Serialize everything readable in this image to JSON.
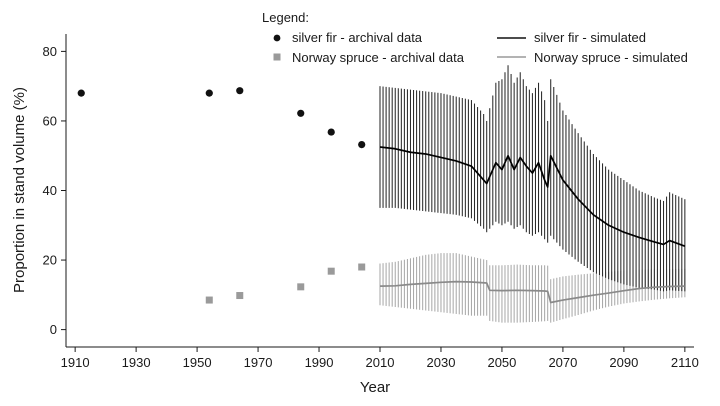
{
  "chart_data": {
    "type": "scatter",
    "xlabel": "Year",
    "ylabel": "Proportion in stand volume (%)",
    "xlim": [
      1907,
      2113
    ],
    "ylim": [
      -5,
      85
    ],
    "xticks": [
      1910,
      1930,
      1950,
      1970,
      1990,
      2010,
      2030,
      2050,
      2070,
      2090,
      2110
    ],
    "yticks": [
      0,
      20,
      40,
      60,
      80
    ],
    "legend": {
      "title": "Legend:",
      "items": [
        {
          "label": "silver fir - archival data",
          "marker": "circle",
          "color": "#111111"
        },
        {
          "label": "Norway spruce - archival data",
          "marker": "square",
          "color": "#9a9a9a"
        },
        {
          "label": "silver fir - simulated",
          "marker": "line",
          "color": "#111111"
        },
        {
          "label": "Norway spruce - simulated",
          "marker": "line",
          "color": "#9a9a9a"
        }
      ]
    },
    "archival": {
      "fir": {
        "x": [
          1912,
          1954,
          1964,
          1984,
          1994,
          2004
        ],
        "y": [
          68,
          68,
          68.7,
          62.2,
          56.8,
          53.2
        ]
      },
      "spruce": {
        "x": [
          1954,
          1964,
          1984,
          1994,
          2004
        ],
        "y": [
          8.5,
          9.8,
          12.3,
          16.8,
          18
        ]
      }
    },
    "simulated": {
      "fir": {
        "x": [
          2010,
          2015,
          2020,
          2025,
          2030,
          2035,
          2040,
          2044,
          2045,
          2048,
          2050,
          2052,
          2054,
          2056,
          2058,
          2060,
          2062,
          2064,
          2065,
          2066,
          2070,
          2075,
          2080,
          2085,
          2090,
          2095,
          2100,
          2103,
          2105,
          2110
        ],
        "y": [
          52.5,
          52,
          51,
          50.5,
          49.5,
          48.5,
          47,
          43,
          42,
          48,
          46,
          50,
          46,
          49.5,
          47,
          45,
          48,
          43,
          41,
          50,
          43,
          37.5,
          33,
          30,
          28,
          26.5,
          25.2,
          24.5,
          25.6,
          24
        ],
        "upper": [
          70,
          69.5,
          69,
          68.5,
          68,
          67,
          66,
          62,
          60,
          71,
          72,
          76,
          71,
          74,
          70,
          68,
          71,
          66,
          60,
          72,
          63,
          56.5,
          50.5,
          46,
          43,
          40,
          38,
          37,
          39.5,
          37.5
        ],
        "lower": [
          35,
          35,
          34.5,
          34,
          33.5,
          33,
          32,
          29,
          28,
          31,
          30,
          31,
          29,
          30,
          28,
          27,
          28,
          26,
          25,
          27,
          23,
          19.5,
          16.5,
          14.5,
          13,
          12,
          11.5,
          11,
          11.3,
          11
        ]
      },
      "spruce": {
        "x": [
          2010,
          2015,
          2020,
          2025,
          2030,
          2035,
          2040,
          2045,
          2046,
          2050,
          2055,
          2060,
          2064,
          2065,
          2066,
          2070,
          2075,
          2080,
          2085,
          2090,
          2095,
          2100,
          2105,
          2110
        ],
        "y": [
          12.5,
          12.6,
          13,
          13.3,
          13.6,
          13.8,
          13.7,
          13.4,
          11.3,
          11.2,
          11.3,
          11.2,
          11.1,
          11,
          7.8,
          8.5,
          9.2,
          9.9,
          10.5,
          11.2,
          11.8,
          12.2,
          12.4,
          12.5
        ],
        "upper": [
          19,
          19.5,
          20.5,
          21.5,
          22,
          22,
          21,
          20,
          18.5,
          18.5,
          18.7,
          18.5,
          18.5,
          18.4,
          14.5,
          15.3,
          15.8,
          16.2,
          16.6,
          17,
          17.2,
          17.3,
          17.4,
          17.5
        ],
        "lower": [
          7,
          6.5,
          6,
          5.5,
          5,
          4.5,
          4,
          4,
          2.5,
          2,
          2,
          2.2,
          2.4,
          2.5,
          2,
          3,
          4.2,
          5.5,
          6.6,
          7.5,
          8.1,
          8.6,
          9,
          9.3
        ]
      }
    }
  }
}
